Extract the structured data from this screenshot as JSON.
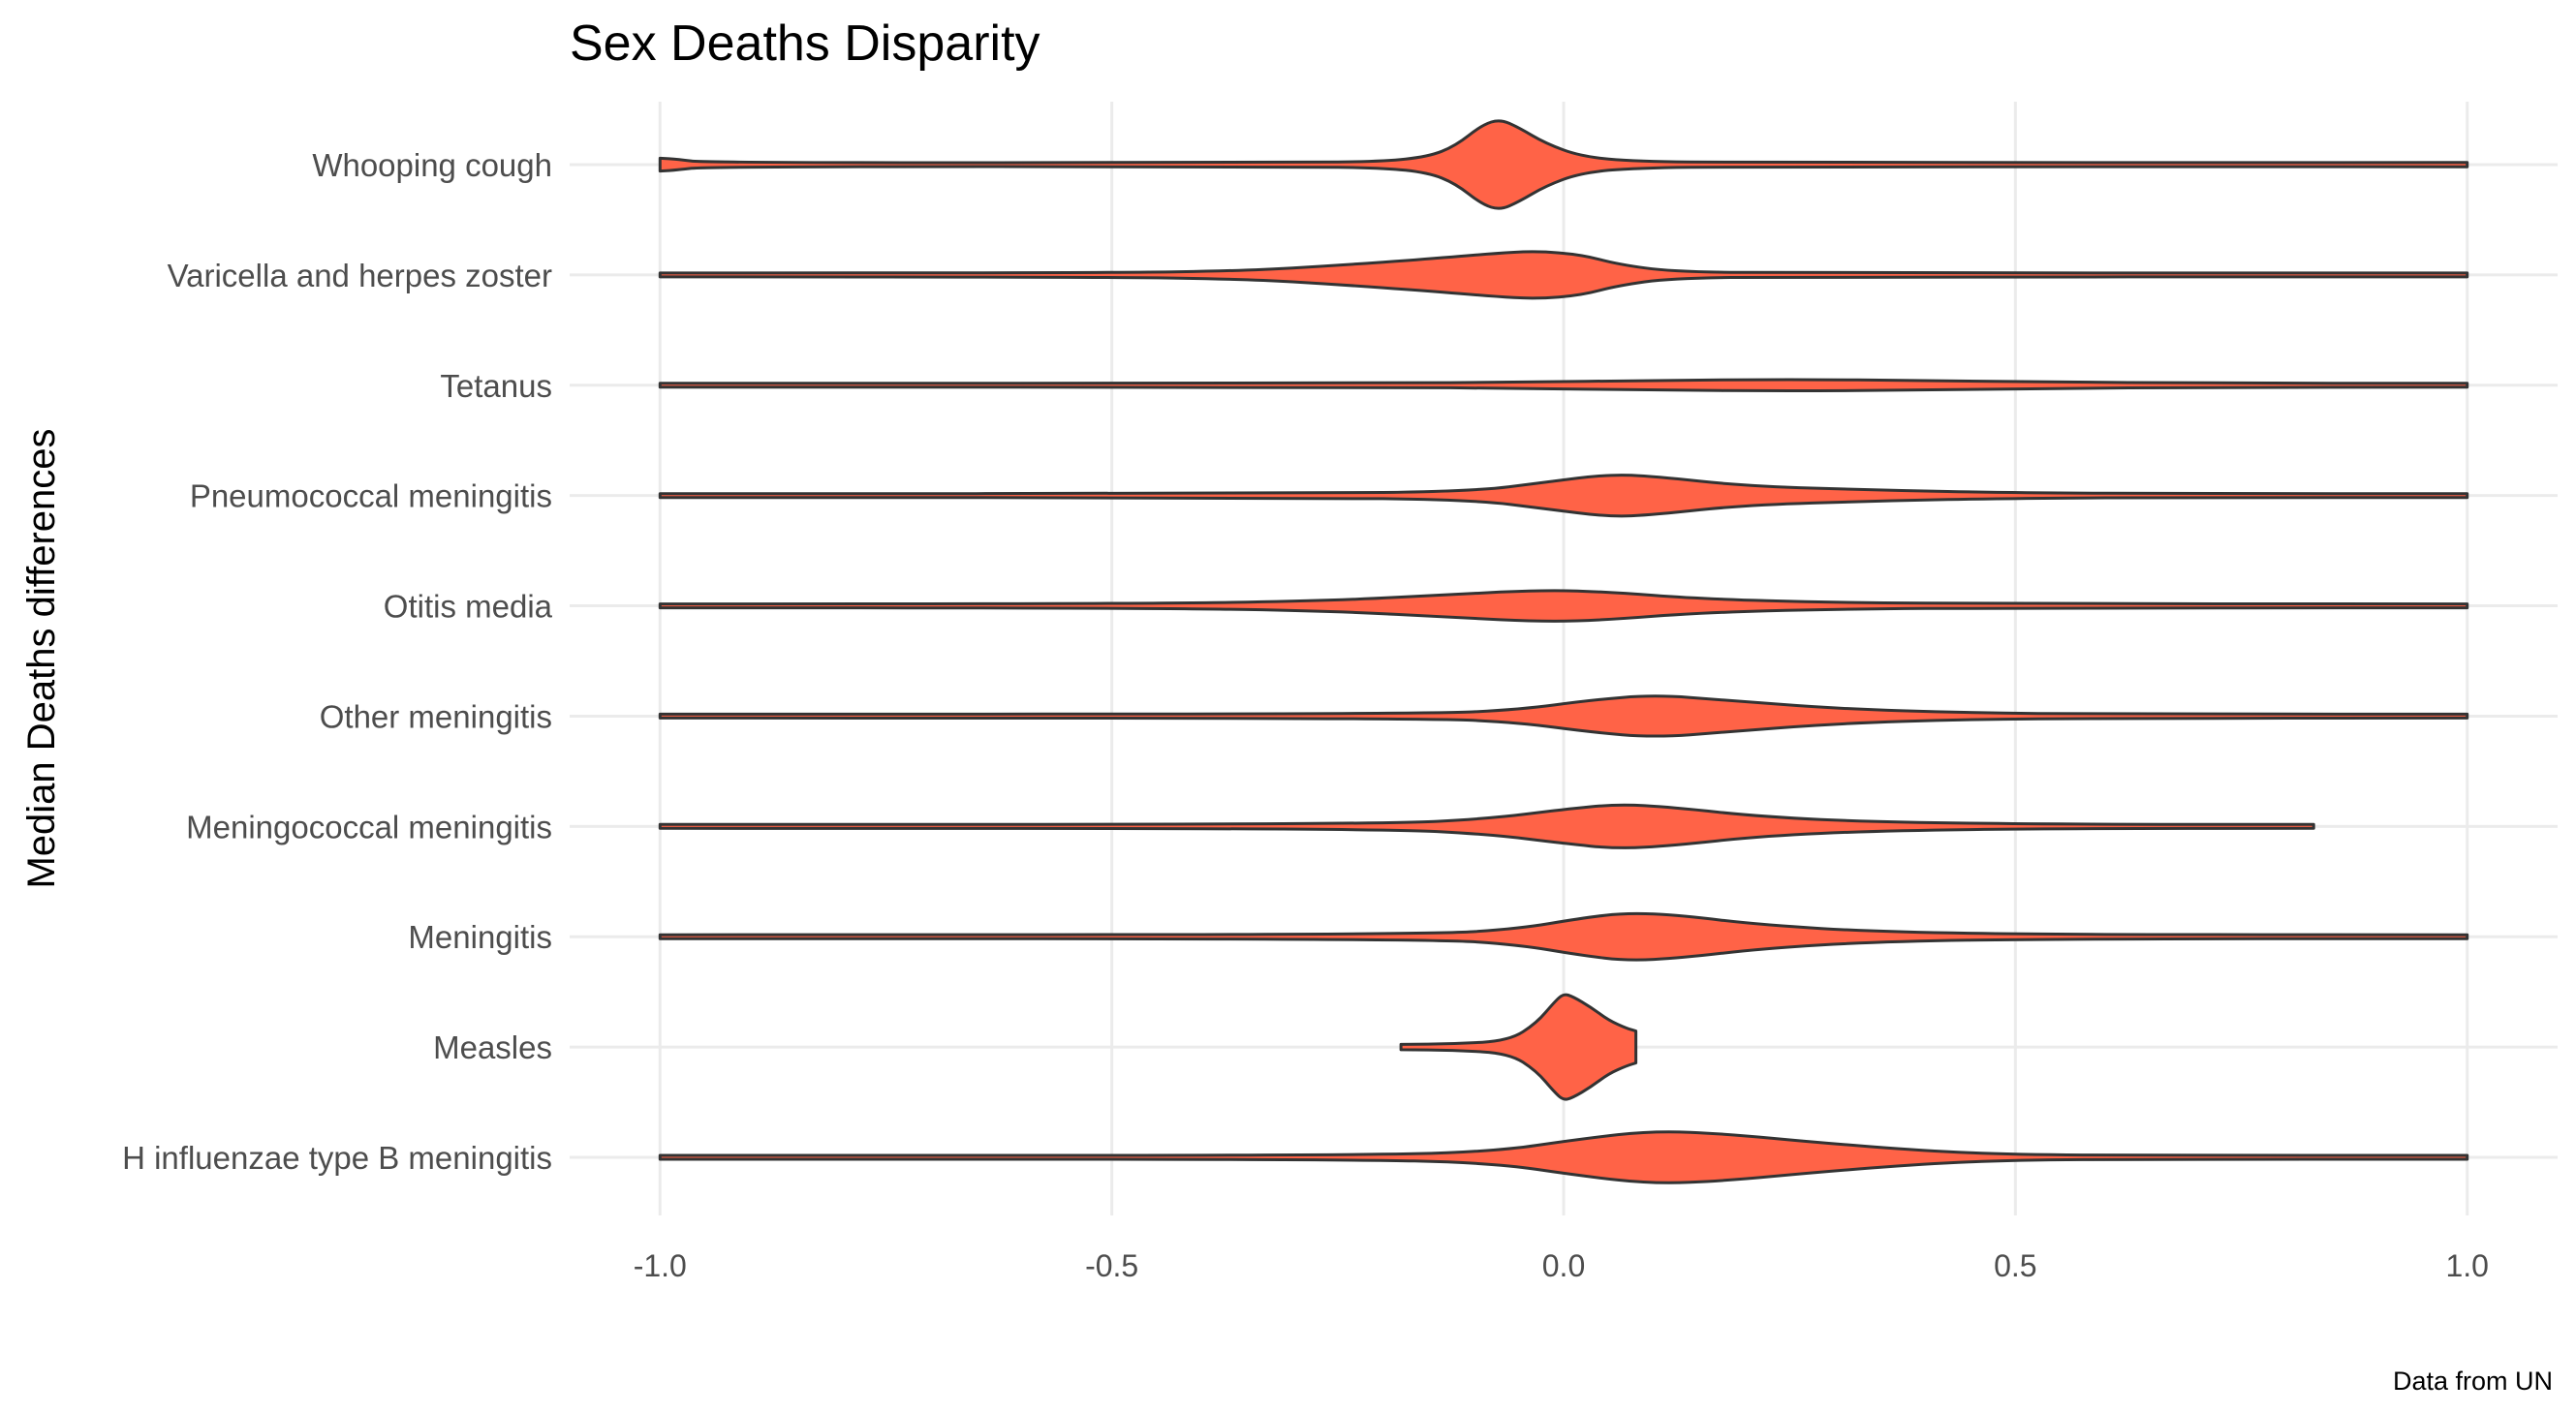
{
  "chart_data": {
    "type": "violin",
    "title": "Sex Deaths Disparity",
    "xlabel": "",
    "ylabel": "Median Deaths differences",
    "caption": "Data from UN",
    "xlim": [
      -1.1,
      1.1
    ],
    "x_ticks": [
      -1.0,
      -0.5,
      0.0,
      0.5,
      1.0
    ],
    "x_tick_labels": [
      "-1.0",
      "-0.5",
      "0.0",
      "0.5",
      "1.0"
    ],
    "grid": true,
    "legend": "none",
    "fill_color": "#FF6347",
    "outline_color": "#333333",
    "categories": [
      "Whooping cough",
      "Varicella and herpes zoster",
      "Tetanus",
      "Pneumococcal meningitis",
      "Otitis media",
      "Other meningitis",
      "Meningococcal meningitis",
      "Meningitis",
      "Measles",
      "H influenzae type B meningitis"
    ],
    "series": [
      {
        "category": "Whooping cough",
        "min": -1.0,
        "max": 1.0,
        "profile": [
          [
            -1.0,
            0.12
          ],
          [
            -0.98,
            0.1
          ],
          [
            -0.95,
            0.03
          ],
          [
            -0.3,
            0.03
          ],
          [
            -0.2,
            0.06
          ],
          [
            -0.15,
            0.15
          ],
          [
            -0.12,
            0.35
          ],
          [
            -0.09,
            0.75
          ],
          [
            -0.07,
            0.85
          ],
          [
            -0.05,
            0.7
          ],
          [
            -0.02,
            0.4
          ],
          [
            0.02,
            0.15
          ],
          [
            0.08,
            0.06
          ],
          [
            0.2,
            0.03
          ],
          [
            1.0,
            0.04
          ]
        ]
      },
      {
        "category": "Varicella and herpes zoster",
        "min": -1.0,
        "max": 1.0,
        "profile": [
          [
            -1.0,
            0.03
          ],
          [
            -0.5,
            0.04
          ],
          [
            -0.35,
            0.08
          ],
          [
            -0.25,
            0.18
          ],
          [
            -0.15,
            0.3
          ],
          [
            -0.08,
            0.4
          ],
          [
            -0.03,
            0.45
          ],
          [
            0.02,
            0.38
          ],
          [
            0.06,
            0.2
          ],
          [
            0.12,
            0.06
          ],
          [
            0.25,
            0.03
          ],
          [
            1.0,
            0.03
          ]
        ]
      },
      {
        "category": "Tetanus",
        "min": -1.0,
        "max": 1.0,
        "profile": [
          [
            -1.0,
            0.03
          ],
          [
            -0.2,
            0.03
          ],
          [
            -0.05,
            0.06
          ],
          [
            0.1,
            0.09
          ],
          [
            0.25,
            0.11
          ],
          [
            0.4,
            0.09
          ],
          [
            0.55,
            0.06
          ],
          [
            0.7,
            0.04
          ],
          [
            1.0,
            0.03
          ]
        ]
      },
      {
        "category": "Pneumococcal meningitis",
        "min": -1.0,
        "max": 1.0,
        "profile": [
          [
            -1.0,
            0.03
          ],
          [
            -0.3,
            0.03
          ],
          [
            -0.1,
            0.08
          ],
          [
            -0.02,
            0.25
          ],
          [
            0.05,
            0.4
          ],
          [
            0.1,
            0.36
          ],
          [
            0.2,
            0.18
          ],
          [
            0.35,
            0.1
          ],
          [
            0.5,
            0.05
          ],
          [
            0.7,
            0.03
          ],
          [
            1.0,
            0.03
          ]
        ]
      },
      {
        "category": "Otitis media",
        "min": -1.0,
        "max": 1.0,
        "profile": [
          [
            -1.0,
            0.03
          ],
          [
            -0.45,
            0.04
          ],
          [
            -0.25,
            0.1
          ],
          [
            -0.12,
            0.22
          ],
          [
            -0.02,
            0.3
          ],
          [
            0.05,
            0.26
          ],
          [
            0.15,
            0.13
          ],
          [
            0.3,
            0.06
          ],
          [
            0.5,
            0.04
          ],
          [
            1.0,
            0.03
          ]
        ]
      },
      {
        "category": "Other meningitis",
        "min": -1.0,
        "max": 1.0,
        "profile": [
          [
            -1.0,
            0.03
          ],
          [
            -0.15,
            0.04
          ],
          [
            -0.05,
            0.12
          ],
          [
            0.03,
            0.3
          ],
          [
            0.1,
            0.4
          ],
          [
            0.18,
            0.3
          ],
          [
            0.3,
            0.14
          ],
          [
            0.45,
            0.06
          ],
          [
            0.6,
            0.04
          ],
          [
            1.0,
            0.03
          ]
        ]
      },
      {
        "category": "Meningococcal meningitis",
        "min": -1.0,
        "max": 0.83,
        "profile": [
          [
            -1.0,
            0.03
          ],
          [
            -0.2,
            0.04
          ],
          [
            -0.08,
            0.15
          ],
          [
            0.0,
            0.32
          ],
          [
            0.06,
            0.42
          ],
          [
            0.12,
            0.36
          ],
          [
            0.22,
            0.18
          ],
          [
            0.35,
            0.08
          ],
          [
            0.55,
            0.04
          ],
          [
            0.83,
            0.03
          ]
        ]
      },
      {
        "category": "Meningitis",
        "min": -1.0,
        "max": 1.0,
        "profile": [
          [
            -1.0,
            0.03
          ],
          [
            -0.15,
            0.04
          ],
          [
            -0.05,
            0.15
          ],
          [
            0.02,
            0.35
          ],
          [
            0.07,
            0.45
          ],
          [
            0.13,
            0.4
          ],
          [
            0.22,
            0.22
          ],
          [
            0.35,
            0.09
          ],
          [
            0.55,
            0.04
          ],
          [
            1.0,
            0.03
          ]
        ]
      },
      {
        "category": "Measles",
        "min": -0.18,
        "max": 0.08,
        "profile": [
          [
            -0.18,
            0.05
          ],
          [
            -0.12,
            0.06
          ],
          [
            -0.06,
            0.12
          ],
          [
            -0.03,
            0.45
          ],
          [
            -0.01,
            0.85
          ],
          [
            0.0,
            1.0
          ],
          [
            0.01,
            0.95
          ],
          [
            0.03,
            0.75
          ],
          [
            0.05,
            0.5
          ],
          [
            0.07,
            0.35
          ],
          [
            0.08,
            0.3
          ]
        ]
      },
      {
        "category": "H influenzae type B meningitis",
        "min": -1.0,
        "max": 1.0,
        "profile": [
          [
            -1.0,
            0.03
          ],
          [
            -0.25,
            0.03
          ],
          [
            -0.08,
            0.1
          ],
          [
            0.02,
            0.35
          ],
          [
            0.1,
            0.5
          ],
          [
            0.18,
            0.44
          ],
          [
            0.28,
            0.28
          ],
          [
            0.4,
            0.12
          ],
          [
            0.5,
            0.05
          ],
          [
            0.65,
            0.03
          ],
          [
            1.0,
            0.03
          ]
        ]
      }
    ]
  }
}
